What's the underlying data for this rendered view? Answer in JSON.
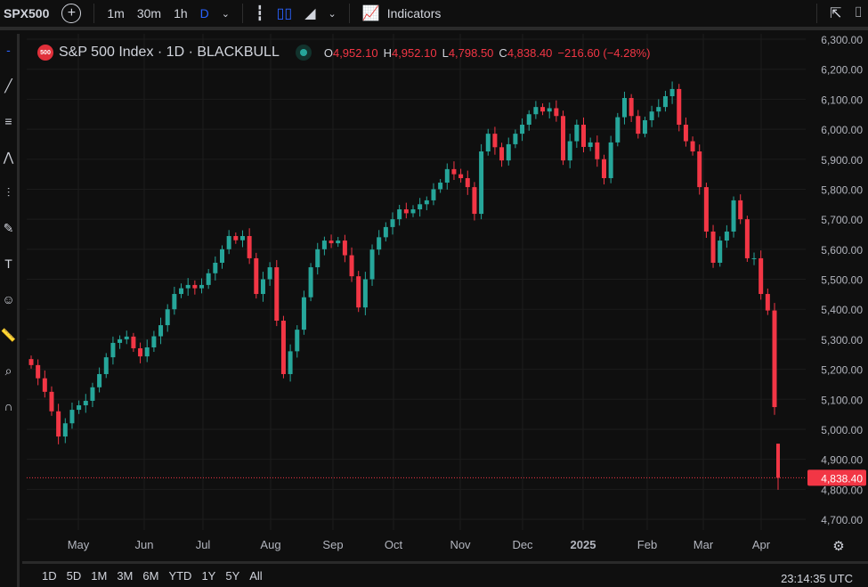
{
  "toolbar": {
    "symbol": "SPX500",
    "timeframes": [
      "1m",
      "30m",
      "1h",
      "D"
    ],
    "active_timeframe": "D",
    "indicators_label": "Indicators"
  },
  "legend": {
    "title": "S&P 500 Index · 1D · BLACKBULL",
    "badge": "500",
    "o_label": "O",
    "o": "4,952.10",
    "h_label": "H",
    "h": "4,952.10",
    "l_label": "L",
    "l": "4,798.50",
    "c_label": "C",
    "c": "4,838.40",
    "change": "−216.60 (−4.28%)"
  },
  "current_price_label": "4,838.40",
  "range_buttons": [
    "1D",
    "5D",
    "1M",
    "3M",
    "6M",
    "YTD",
    "1Y",
    "5Y",
    "All"
  ],
  "clock": "23:14:35 UTC",
  "colors": {
    "up": "#26a69a",
    "down": "#f23645",
    "accent": "#2962ff"
  },
  "chart_data": {
    "type": "candlestick",
    "title": "S&P 500 Index · 1D · BLACKBULL",
    "ylim": [
      4650,
      6320
    ],
    "yticks": [
      4700,
      4800,
      4900,
      5000,
      5100,
      5200,
      5300,
      5400,
      5500,
      5600,
      5700,
      5800,
      5900,
      6000,
      6100,
      6200,
      6300
    ],
    "ytick_labels": [
      "4,700.00",
      "4,800.00",
      "4,900.00",
      "5,000.00",
      "5,100.00",
      "5,200.00",
      "5,300.00",
      "5,400.00",
      "5,500.00",
      "5,600.00",
      "5,700.00",
      "5,800.00",
      "5,900.00",
      "6,000.00",
      "6,100.00",
      "6,200.00",
      "6,300.00"
    ],
    "xtick_labels": [
      "May",
      "Jun",
      "Jul",
      "Aug",
      "Sep",
      "Oct",
      "Nov",
      "Dec",
      "2025",
      "Feb",
      "Mar",
      "Apr"
    ],
    "closes": [
      5214,
      5170,
      5125,
      5060,
      4976,
      5020,
      5065,
      5080,
      5095,
      5140,
      5184,
      5240,
      5288,
      5300,
      5309,
      5270,
      5243,
      5273,
      5310,
      5347,
      5400,
      5451,
      5470,
      5481,
      5470,
      5481,
      5520,
      5555,
      5600,
      5644,
      5630,
      5644,
      5570,
      5451,
      5500,
      5540,
      5362,
      5184,
      5260,
      5332,
      5440,
      5540,
      5600,
      5629,
      5620,
      5629,
      5580,
      5510,
      5406,
      5500,
      5599,
      5640,
      5674,
      5700,
      5733,
      5720,
      5733,
      5750,
      5763,
      5800,
      5822,
      5867,
      5850,
      5837,
      5807,
      5718,
      5926,
      5985,
      5940,
      5896,
      5950,
      5985,
      6015,
      6050,
      6074,
      6059,
      6070,
      6044,
      5896,
      5960,
      6015,
      5941,
      5956,
      5900,
      5837,
      5956,
      6040,
      6104,
      6044,
      5985,
      6030,
      6059,
      6074,
      6110,
      6134,
      6015,
      5960,
      5926,
      5807,
      5659,
      5555,
      5629,
      5659,
      5763,
      5700,
      5570,
      5570,
      5451,
      5396,
      5074
    ],
    "last_candle": {
      "open": 4952.1,
      "high": 4952.1,
      "low": 4798.5,
      "close": 4838.4
    }
  }
}
